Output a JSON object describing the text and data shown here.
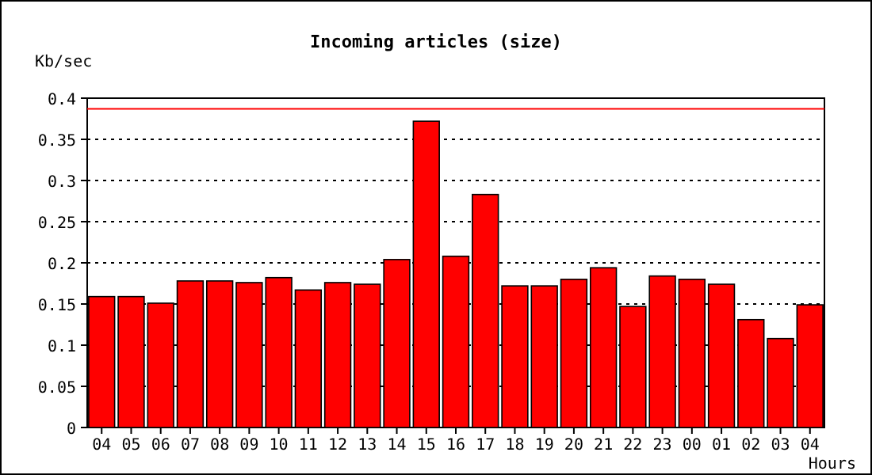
{
  "chart_data": {
    "type": "bar",
    "title": "Incoming articles (size)",
    "ylabel": "Kb/sec",
    "xlabel": "Hours",
    "categories": [
      "04",
      "05",
      "06",
      "07",
      "08",
      "09",
      "10",
      "11",
      "12",
      "13",
      "14",
      "15",
      "16",
      "17",
      "18",
      "19",
      "20",
      "21",
      "22",
      "23",
      "00",
      "01",
      "02",
      "03",
      "04"
    ],
    "values": [
      0.159,
      0.159,
      0.151,
      0.178,
      0.178,
      0.176,
      0.182,
      0.167,
      0.176,
      0.174,
      0.204,
      0.372,
      0.208,
      0.283,
      0.172,
      0.172,
      0.18,
      0.194,
      0.147,
      0.184,
      0.18,
      0.174,
      0.131,
      0.108,
      0.149
    ],
    "color": "#ff0000",
    "ylim": [
      0,
      0.4
    ],
    "yticks": [
      0,
      0.05,
      0.1,
      0.15,
      0.2,
      0.25,
      0.3,
      0.35,
      0.4
    ],
    "grid": "y",
    "ref_lines": [
      {
        "axis": "y",
        "value": 0.387,
        "color": "#ff0000"
      }
    ]
  }
}
